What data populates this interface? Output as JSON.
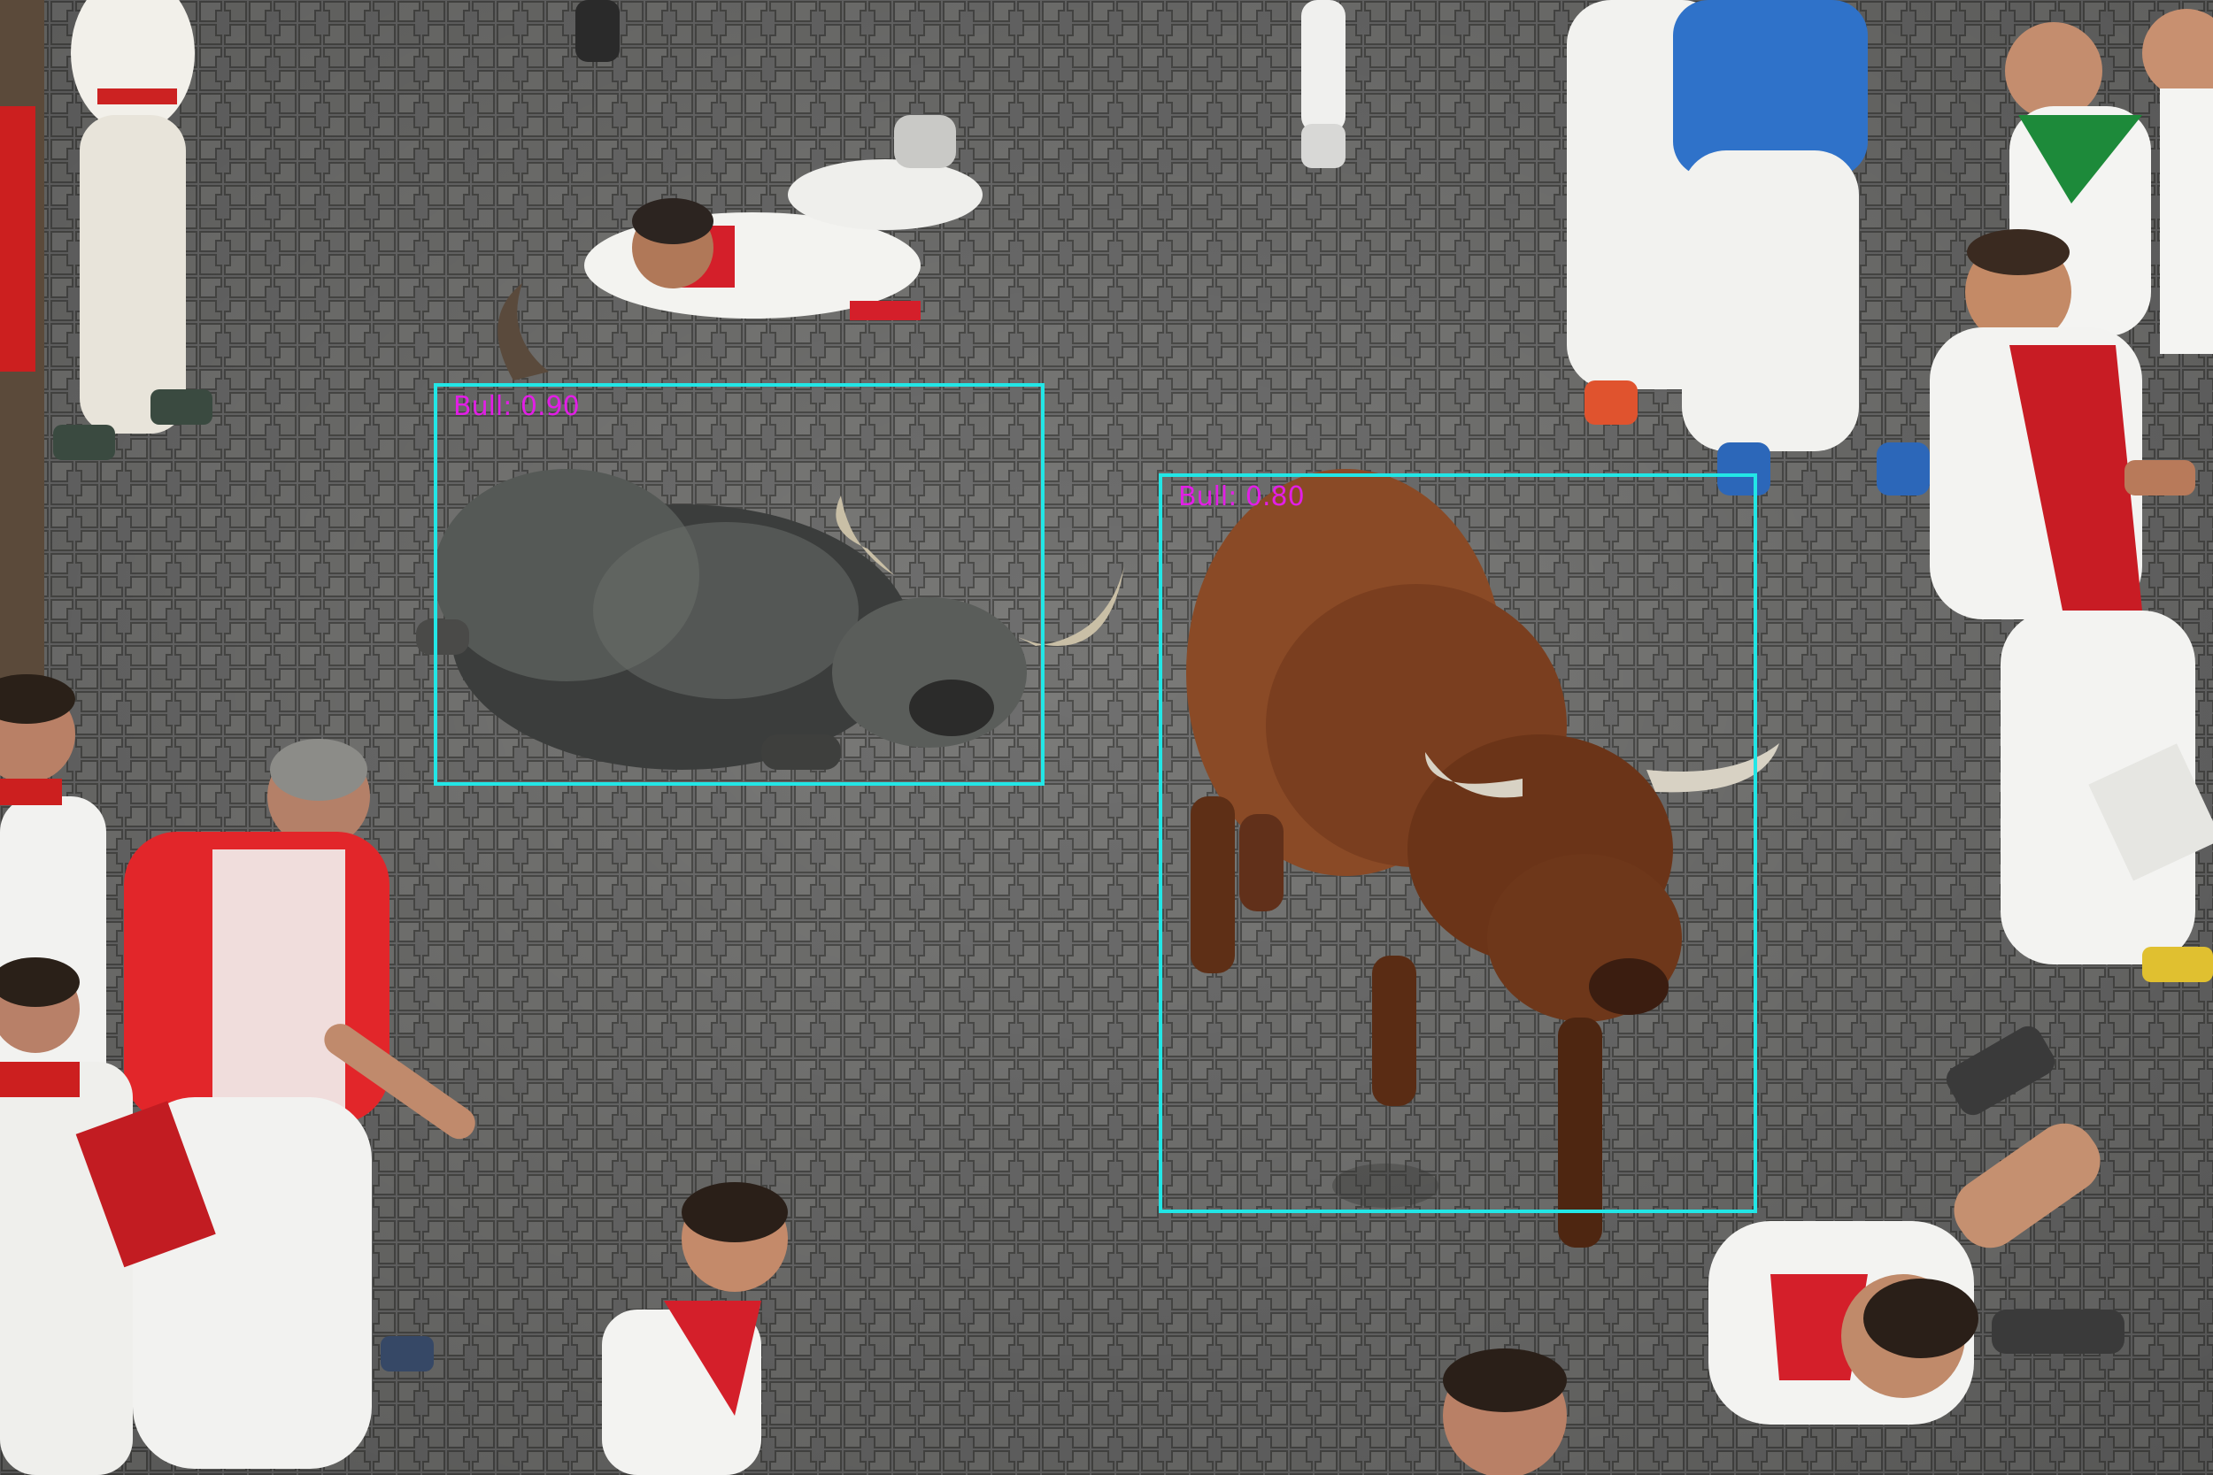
{
  "image": {
    "description_free": true
  },
  "detections": [
    {
      "label": "Bull: 0.90",
      "class": "Bull",
      "score": 0.9
    },
    {
      "label": "Bull: 0.80",
      "class": "Bull",
      "score": 0.8
    }
  ],
  "colors": {
    "box_outline": "#22e6e6",
    "label_text": "#e21ee6",
    "pavement": "#6f6f6c"
  }
}
